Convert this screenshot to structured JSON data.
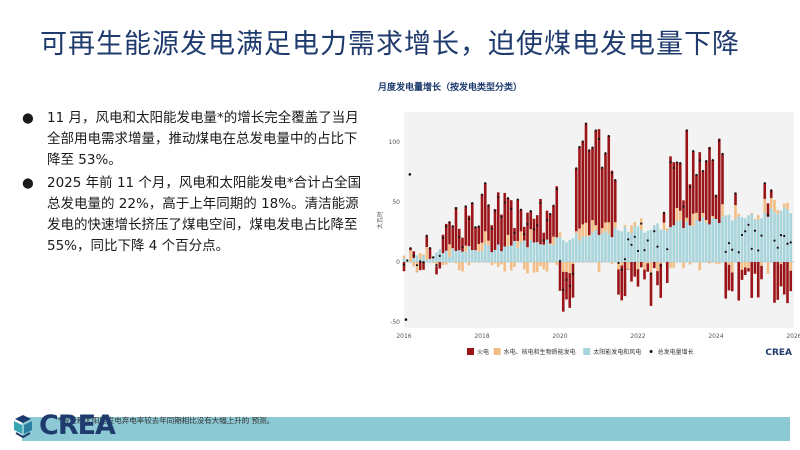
{
  "slide": {
    "title": "可再生能源发电满足电力需求增长，迫使煤电发电量下降",
    "bullets": [
      "11 月，风电和太阳能发电量*的增长完全覆盖了当月全部用电需求增量，推动煤电在总发电量中的占比下降至 53%。",
      "2025 年前 11 个月，风电和太阳能发电*合计占全国总发电量的 22%，高于上年同期的 18%。清洁能源发电的快速增长挤压了煤电空间，煤电发电占比降至 55%，同比下降 4 个百分点。"
    ],
    "bullet_symbol": "●",
    "footnote": "*假设和太阳能发电弃电率较去年同期相比没有大幅上升的 预测。",
    "logo_text": "CREA"
  },
  "chart_data": {
    "type": "bar",
    "stacked": true,
    "title": "月度发电量增长（按发电类型分类）",
    "ylabel": "太瓦时",
    "xlabel": "",
    "ylim": [
      -55,
      125
    ],
    "xlim": [
      2016,
      2026
    ],
    "yticks": [
      -50,
      0,
      50,
      100
    ],
    "xticks": [
      "2016",
      "2018",
      "2020",
      "2022",
      "2024",
      "2026"
    ],
    "legend_position": "bottom",
    "grid": false,
    "logo": "CREA",
    "series": [
      {
        "name": "火电",
        "color": "#9b1518"
      },
      {
        "name": "水电、核电和生物质能发电",
        "color": "#f2be85"
      },
      {
        "name": "太阳能发电和风电",
        "color": "#a8d4dc"
      },
      {
        "name": "总发电量增长",
        "color": "#111111"
      }
    ],
    "notable_points": [
      {
        "x": 2016.05,
        "y": -48
      },
      {
        "x": 2016.15,
        "y": 73
      }
    ]
  }
}
